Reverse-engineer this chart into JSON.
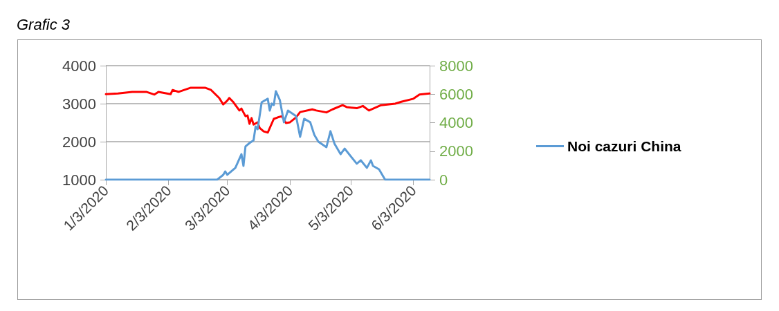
{
  "chart_data": {
    "type": "line",
    "title": "Grafic 3",
    "xlim": [
      "2020-01-03",
      "2020-06-11"
    ],
    "xticks": [
      {
        "value": "2020-01-03",
        "label": "1/3/2020"
      },
      {
        "value": "2020-02-03",
        "label": "2/3/2020"
      },
      {
        "value": "2020-03-03",
        "label": "3/3/2020"
      },
      {
        "value": "2020-04-03",
        "label": "4/3/2020"
      },
      {
        "value": "2020-05-03",
        "label": "5/3/2020"
      },
      {
        "value": "2020-06-03",
        "label": "6/3/2020"
      }
    ],
    "ylim": [
      1000,
      4000
    ],
    "yticks": [
      1000,
      2000,
      3000,
      4000
    ],
    "y2lim": [
      0,
      8000
    ],
    "y2ticks": [
      0,
      2000,
      4000,
      6000,
      8000
    ],
    "grid": "y",
    "legend": "right",
    "marker": "none",
    "series": [
      {
        "color": "#ff0000",
        "x": [
          "2020-01-03",
          "2020-01-09",
          "2020-01-16",
          "2020-01-23",
          "2020-01-27",
          "2020-01-29",
          "2020-02-04",
          "2020-02-05",
          "2020-02-08",
          "2020-02-14",
          "2020-02-21",
          "2020-02-24",
          "2020-02-28",
          "2020-03-01",
          "2020-03-03",
          "2020-03-04",
          "2020-03-06",
          "2020-03-09",
          "2020-03-10",
          "2020-03-12",
          "2020-03-13",
          "2020-03-14",
          "2020-03-15",
          "2020-03-16",
          "2020-03-18",
          "2020-03-19",
          "2020-03-21",
          "2020-03-23",
          "2020-03-26",
          "2020-03-28",
          "2020-03-30",
          "2020-04-01",
          "2020-04-03",
          "2020-04-06",
          "2020-04-08",
          "2020-04-14",
          "2020-04-16",
          "2020-04-21",
          "2020-04-24",
          "2020-04-29",
          "2020-05-01",
          "2020-05-06",
          "2020-05-09",
          "2020-05-12",
          "2020-05-18",
          "2020-05-25",
          "2020-05-28",
          "2020-06-03",
          "2020-06-06",
          "2020-06-11"
        ],
        "values": [
          3250,
          3270,
          3310,
          3310,
          3240,
          3310,
          3250,
          3360,
          3310,
          3420,
          3420,
          3360,
          3150,
          2980,
          3080,
          3150,
          3040,
          2820,
          2870,
          2670,
          2690,
          2470,
          2620,
          2450,
          2510,
          2360,
          2270,
          2240,
          2600,
          2640,
          2670,
          2490,
          2510,
          2640,
          2780,
          2850,
          2820,
          2770,
          2850,
          2960,
          2910,
          2880,
          2940,
          2820,
          2960,
          3000,
          3050,
          3130,
          3240,
          3270
        ]
      },
      {
        "name": "Noi cazuri China",
        "color": "#5b9bd5",
        "axis": "y2",
        "x": [
          "2020-01-03",
          "2020-02-25",
          "2020-02-27",
          "2020-03-01",
          "2020-03-02",
          "2020-03-03",
          "2020-03-07",
          "2020-03-10",
          "2020-03-11",
          "2020-03-12",
          "2020-03-14",
          "2020-03-16",
          "2020-03-17",
          "2020-03-18",
          "2020-03-20",
          "2020-03-23",
          "2020-03-24",
          "2020-03-25",
          "2020-03-26",
          "2020-03-27",
          "2020-03-29",
          "2020-03-31",
          "2020-04-02",
          "2020-04-06",
          "2020-04-08",
          "2020-04-10",
          "2020-04-13",
          "2020-04-15",
          "2020-04-17",
          "2020-04-21",
          "2020-04-23",
          "2020-04-25",
          "2020-04-28",
          "2020-04-30",
          "2020-05-06",
          "2020-05-08",
          "2020-05-11",
          "2020-05-13",
          "2020-05-14",
          "2020-05-17",
          "2020-05-20",
          "2020-06-11"
        ],
        "values": [
          0,
          0,
          0,
          340,
          580,
          340,
          830,
          1790,
          970,
          2330,
          2570,
          2760,
          3730,
          3540,
          5430,
          5680,
          4850,
          5340,
          5240,
          6210,
          5580,
          4030,
          4850,
          4460,
          3010,
          4270,
          4030,
          3150,
          2670,
          2280,
          3400,
          2520,
          1790,
          2180,
          1120,
          1360,
          830,
          1360,
          970,
          730,
          0,
          0
        ]
      }
    ]
  }
}
